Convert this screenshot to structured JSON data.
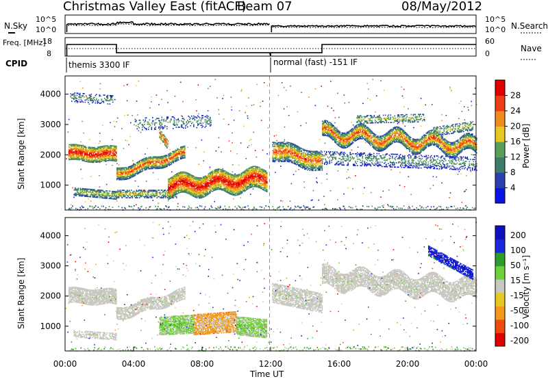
{
  "header": {
    "title": "Christmas Valley East (fitACF)",
    "beam": "Beam 07",
    "date": "08/May/2012"
  },
  "colors": {
    "power_scale": [
      "#0a14e6",
      "#2a3fb0",
      "#3f7d6a",
      "#5aa05a",
      "#e8c820",
      "#f08c1e",
      "#f03c14",
      "#e00000"
    ],
    "velocity_scale": [
      "#e00000",
      "#f04a10",
      "#f59a18",
      "#e8c820",
      "#c8c8c0",
      "#6fcf3a",
      "#2c9c2c",
      "#1c28e0",
      "#1010c0"
    ]
  },
  "chart_data": [
    {
      "type": "line",
      "name": "sky-search-noise",
      "left_label": "N.Sky",
      "right_label": "N.Search",
      "left_ticks": [
        "10^5",
        "10^0"
      ],
      "right_ticks": [
        "10^5",
        "10^0"
      ],
      "x_ticks": [
        "00:00",
        "04:00",
        "08:00",
        "12:00",
        "16:00",
        "20:00",
        "00:00"
      ]
    },
    {
      "type": "line",
      "name": "frequency-nave",
      "left_label": "Freq. [MHz]",
      "right_label": "Nave",
      "left_ticks": [
        "18",
        "8"
      ],
      "right_ticks": [
        "60",
        "0"
      ],
      "freq_segments": [
        {
          "start_h": 0.0,
          "end_h": 3.0,
          "value": 14.3
        },
        {
          "start_h": 3.0,
          "end_h": 12.0,
          "value": 9.8
        },
        {
          "start_h": 12.0,
          "end_h": 15.0,
          "value": 9.8
        },
        {
          "start_h": 15.0,
          "end_h": 24.0,
          "value": 14.3
        }
      ]
    },
    {
      "type": "table",
      "name": "cpid",
      "label": "CPID",
      "entries": [
        {
          "start_h": 0.0,
          "text": "themis 3300 IF"
        },
        {
          "start_h": 12.0,
          "text": "normal (fast) -151 IF"
        }
      ]
    },
    {
      "type": "heatmap",
      "name": "power",
      "ylabel": "Slant Range [km]",
      "yticks": [
        1000,
        2000,
        3000,
        4000
      ],
      "ylim": [
        180,
        4600
      ],
      "xlim": [
        0,
        24
      ],
      "colorbar_label": "Power [dB]",
      "colorbar_ticks": [
        4,
        8,
        12,
        16,
        20,
        24,
        28
      ],
      "colorbar_range": [
        0,
        32
      ]
    },
    {
      "type": "heatmap",
      "name": "velocity",
      "ylabel": "Slant Range [km]",
      "yticks": [
        1000,
        2000,
        3000,
        4000
      ],
      "ylim": [
        180,
        4600
      ],
      "xlim": [
        0,
        24
      ],
      "xlabel": "Time UT",
      "xticks": [
        "00:00",
        "04:00",
        "08:00",
        "12:00",
        "16:00",
        "20:00",
        "00:00"
      ],
      "colorbar_label": "Velocity [m s⁻¹]",
      "colorbar_ticks": [
        "200",
        "100",
        "50",
        "15",
        "-15",
        "-50",
        "-100",
        "-200"
      ]
    }
  ]
}
